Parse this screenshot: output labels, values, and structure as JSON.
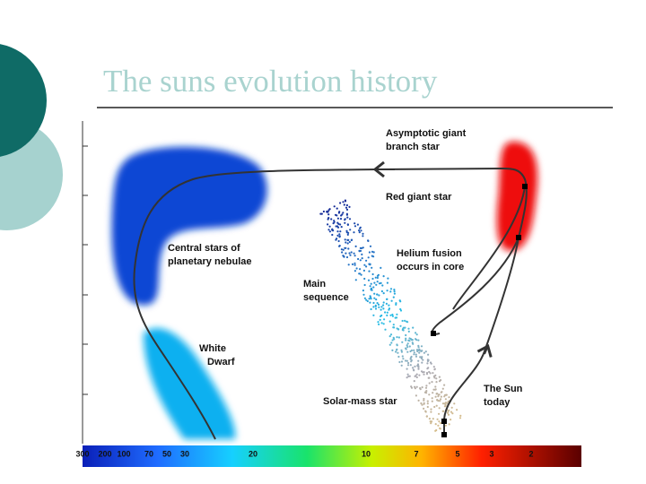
{
  "title": "The suns evolution history",
  "labels": {
    "agb": [
      "Asymptotic giant",
      "branch star"
    ],
    "red_giant": [
      "Red giant star"
    ],
    "central_stars": [
      "Central stars of",
      "planetary nebulae"
    ],
    "helium": [
      "Helium fusion",
      "occurs in core"
    ],
    "main_sequence": [
      "Main",
      "sequence"
    ],
    "white_dwarf": [
      "White",
      "Dwarf"
    ],
    "solar_mass": [
      "Solar-mass star"
    ],
    "sun_today": [
      "The Sun",
      "today"
    ]
  },
  "temperature_ticks": [
    "300",
    "200",
    "100",
    "70",
    "50",
    "30",
    "20",
    "10",
    "7",
    "5",
    "3",
    "2"
  ]
}
